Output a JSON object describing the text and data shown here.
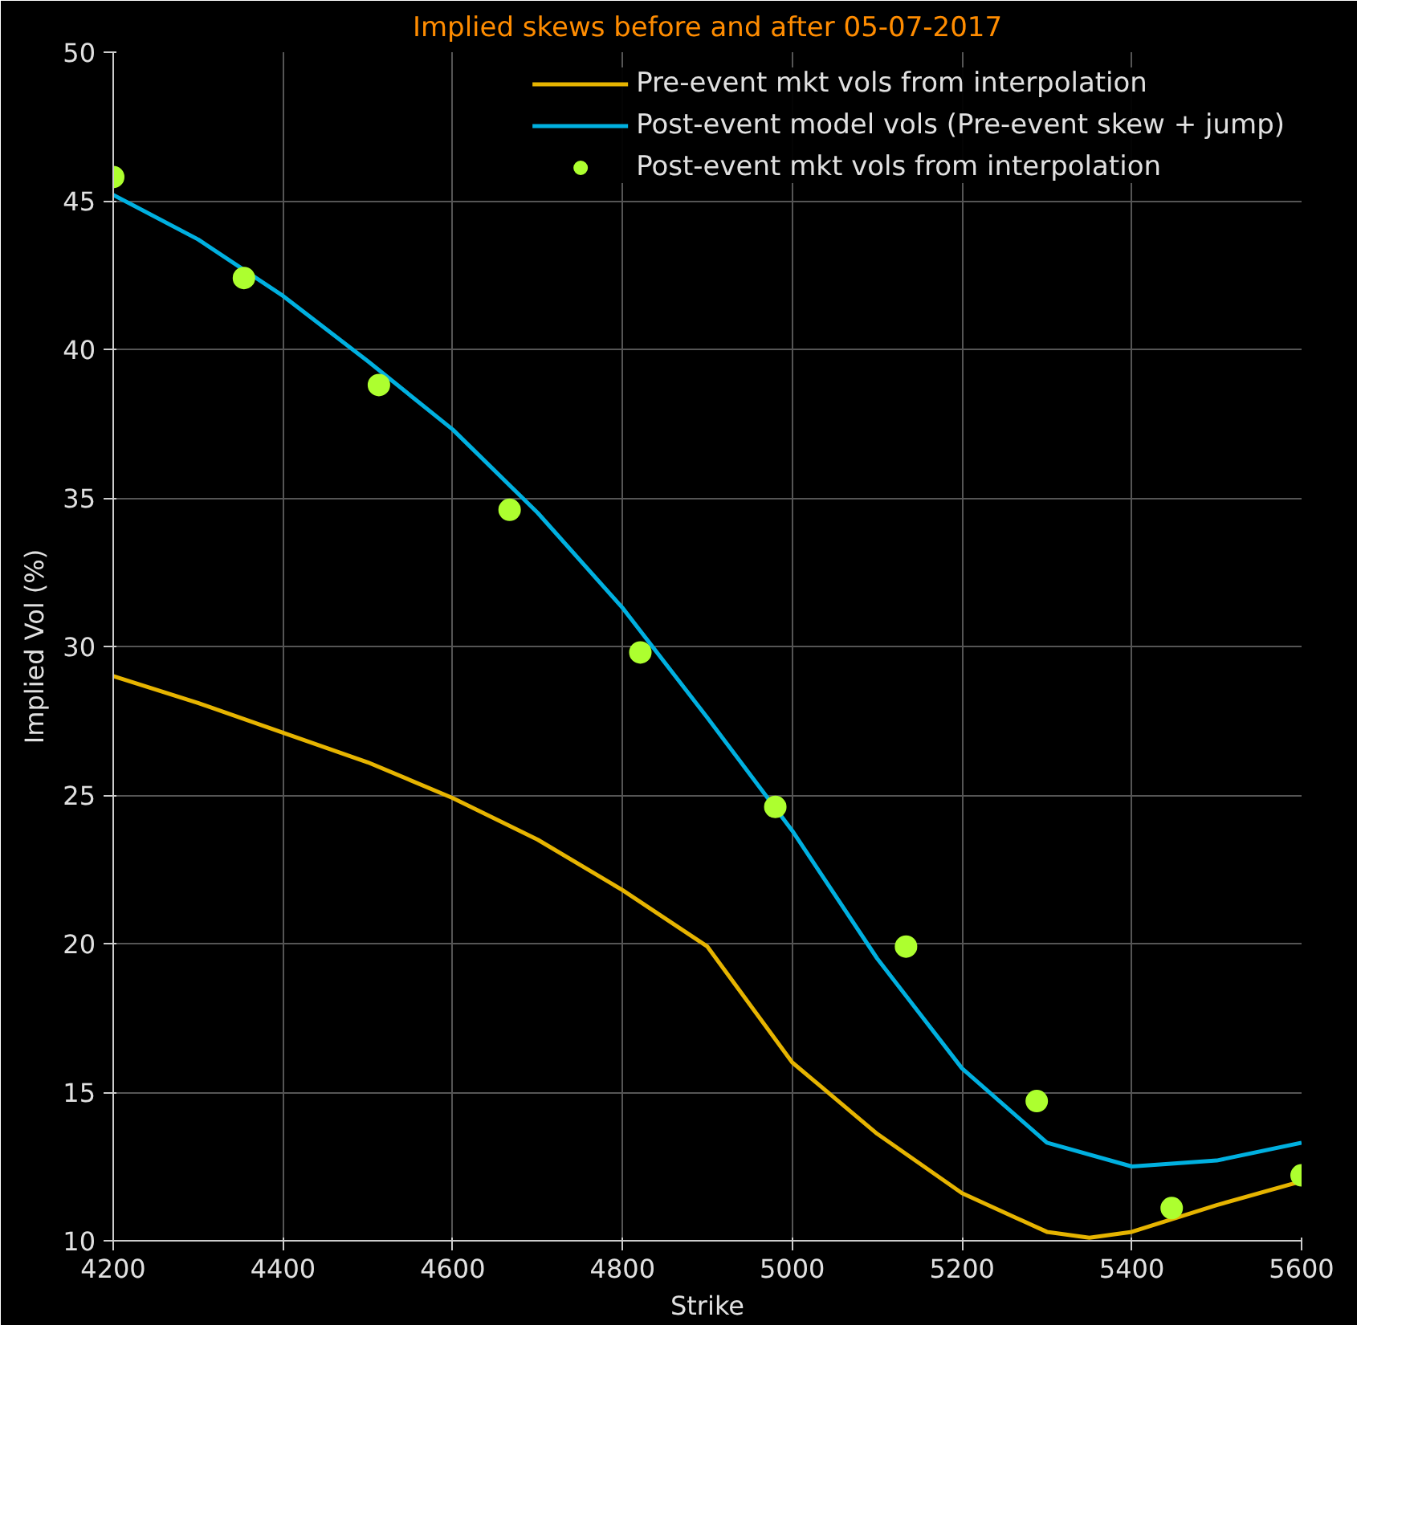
{
  "chart_data": {
    "type": "line",
    "title": "Implied skews before and after 05-07-2017",
    "xlabel": "Strike",
    "ylabel": "Implied Vol (%)",
    "xlim": [
      4200,
      5600
    ],
    "xticks": [
      4200,
      4400,
      4600,
      4800,
      5000,
      5200,
      5400,
      5600
    ],
    "ylim": [
      10,
      50
    ],
    "yticks": [
      10,
      15,
      20,
      25,
      30,
      35,
      40,
      45,
      50
    ],
    "grid": true,
    "legend": "top right",
    "series": [
      {
        "name": "Pre-event mkt vols from interpolation",
        "type": "line",
        "color": "#e6b400",
        "x": [
          4200,
          4300,
          4400,
          4500,
          4600,
          4700,
          4800,
          4900,
          5000,
          5100,
          5200,
          5300,
          5350,
          5400,
          5500,
          5600
        ],
        "values": [
          29.0,
          28.1,
          27.1,
          26.1,
          24.9,
          23.5,
          21.8,
          19.9,
          16.0,
          13.6,
          11.6,
          10.3,
          10.1,
          10.3,
          11.2,
          12.0
        ]
      },
      {
        "name": "Post-event model vols (Pre-event skew + jump)",
        "type": "line",
        "color": "#00b0e0",
        "x": [
          4200,
          4300,
          4400,
          4500,
          4600,
          4700,
          4800,
          4900,
          5000,
          5100,
          5200,
          5300,
          5400,
          5500,
          5600
        ],
        "values": [
          45.2,
          43.7,
          41.8,
          39.6,
          37.3,
          34.5,
          31.3,
          27.6,
          23.8,
          19.5,
          15.8,
          13.3,
          12.5,
          12.7,
          13.3
        ]
      },
      {
        "name": "Post-event mkt vols from interpolation",
        "type": "scatter",
        "marker": "circle",
        "color": "#adff2f",
        "x": [
          4200,
          4354,
          4513,
          4667,
          4821,
          4980,
          5134,
          5288,
          5447,
          5600
        ],
        "values": [
          45.8,
          42.4,
          38.8,
          34.6,
          29.8,
          24.6,
          19.9,
          14.7,
          11.1,
          12.2
        ]
      }
    ]
  }
}
